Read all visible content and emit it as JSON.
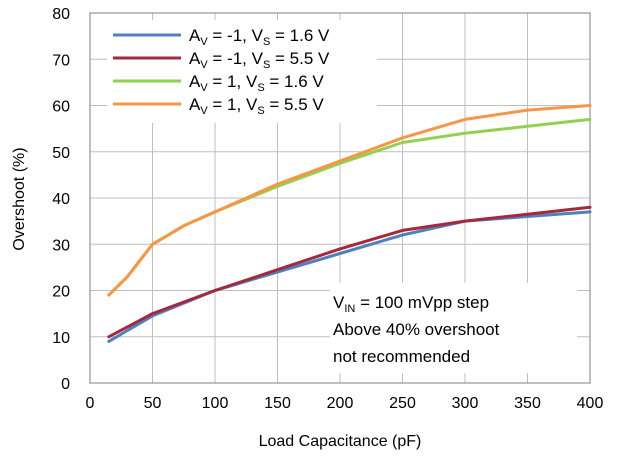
{
  "chart_data": {
    "type": "line",
    "xlabel": "Load Capacitance (pF)",
    "ylabel": "Overshoot (%)",
    "xlim": [
      0,
      400
    ],
    "ylim": [
      0,
      80
    ],
    "x_ticks": [
      "0",
      "50",
      "100",
      "150",
      "200",
      "250",
      "300",
      "350",
      "400"
    ],
    "y_ticks": [
      "0",
      "10",
      "20",
      "30",
      "40",
      "50",
      "60",
      "70",
      "80"
    ],
    "grid": true,
    "legend_position": "top-left",
    "series": [
      {
        "name": "AV = -1, VS = 1.6 V",
        "label_parts": {
          "a": "A",
          "a_sub": "V",
          "mid": " = -1, V",
          "v_sub": "S",
          "end": " = 1.6 V"
        },
        "color": "#4f81bd",
        "x": [
          15,
          50,
          100,
          150,
          200,
          250,
          300,
          350,
          400
        ],
        "y": [
          9,
          14.5,
          20,
          24,
          28,
          32,
          35,
          36,
          37
        ]
      },
      {
        "name": "AV = -1, VS = 5.5 V",
        "label_parts": {
          "a": "A",
          "a_sub": "V",
          "mid": " = -1, V",
          "v_sub": "S",
          "end": " = 5.5 V"
        },
        "color": "#a5283c",
        "x": [
          15,
          50,
          100,
          150,
          200,
          250,
          300,
          350,
          400
        ],
        "y": [
          10,
          15,
          20,
          24.5,
          29,
          33,
          35,
          36.5,
          38
        ]
      },
      {
        "name": "AV = 1, VS = 1.6 V",
        "label_parts": {
          "a": "A",
          "a_sub": "V",
          "mid": " = 1, V",
          "v_sub": "S",
          "end": " = 1.6 V"
        },
        "color": "#92d050",
        "x": [
          15,
          30,
          50,
          75,
          100,
          150,
          200,
          250,
          275,
          300,
          350,
          400
        ],
        "y": [
          19,
          23,
          30,
          34,
          37,
          42.5,
          47.5,
          52,
          53,
          54,
          55.5,
          57
        ]
      },
      {
        "name": "AV = 1, VS = 5.5 V",
        "label_parts": {
          "a": "A",
          "a_sub": "V",
          "mid": " = 1, V",
          "v_sub": "S",
          "end": " = 5.5 V"
        },
        "color": "#f79646",
        "x": [
          15,
          30,
          50,
          75,
          100,
          150,
          200,
          250,
          300,
          350,
          400
        ],
        "y": [
          19,
          23,
          30,
          34,
          37,
          43,
          48,
          53,
          57,
          59,
          60
        ]
      }
    ],
    "annotation": {
      "line1_main": "V",
      "line1_sub": "IN",
      "line1_rest": " = 100 mVpp step",
      "line2": "Above 40% overshoot",
      "line3": "not recommended"
    }
  }
}
